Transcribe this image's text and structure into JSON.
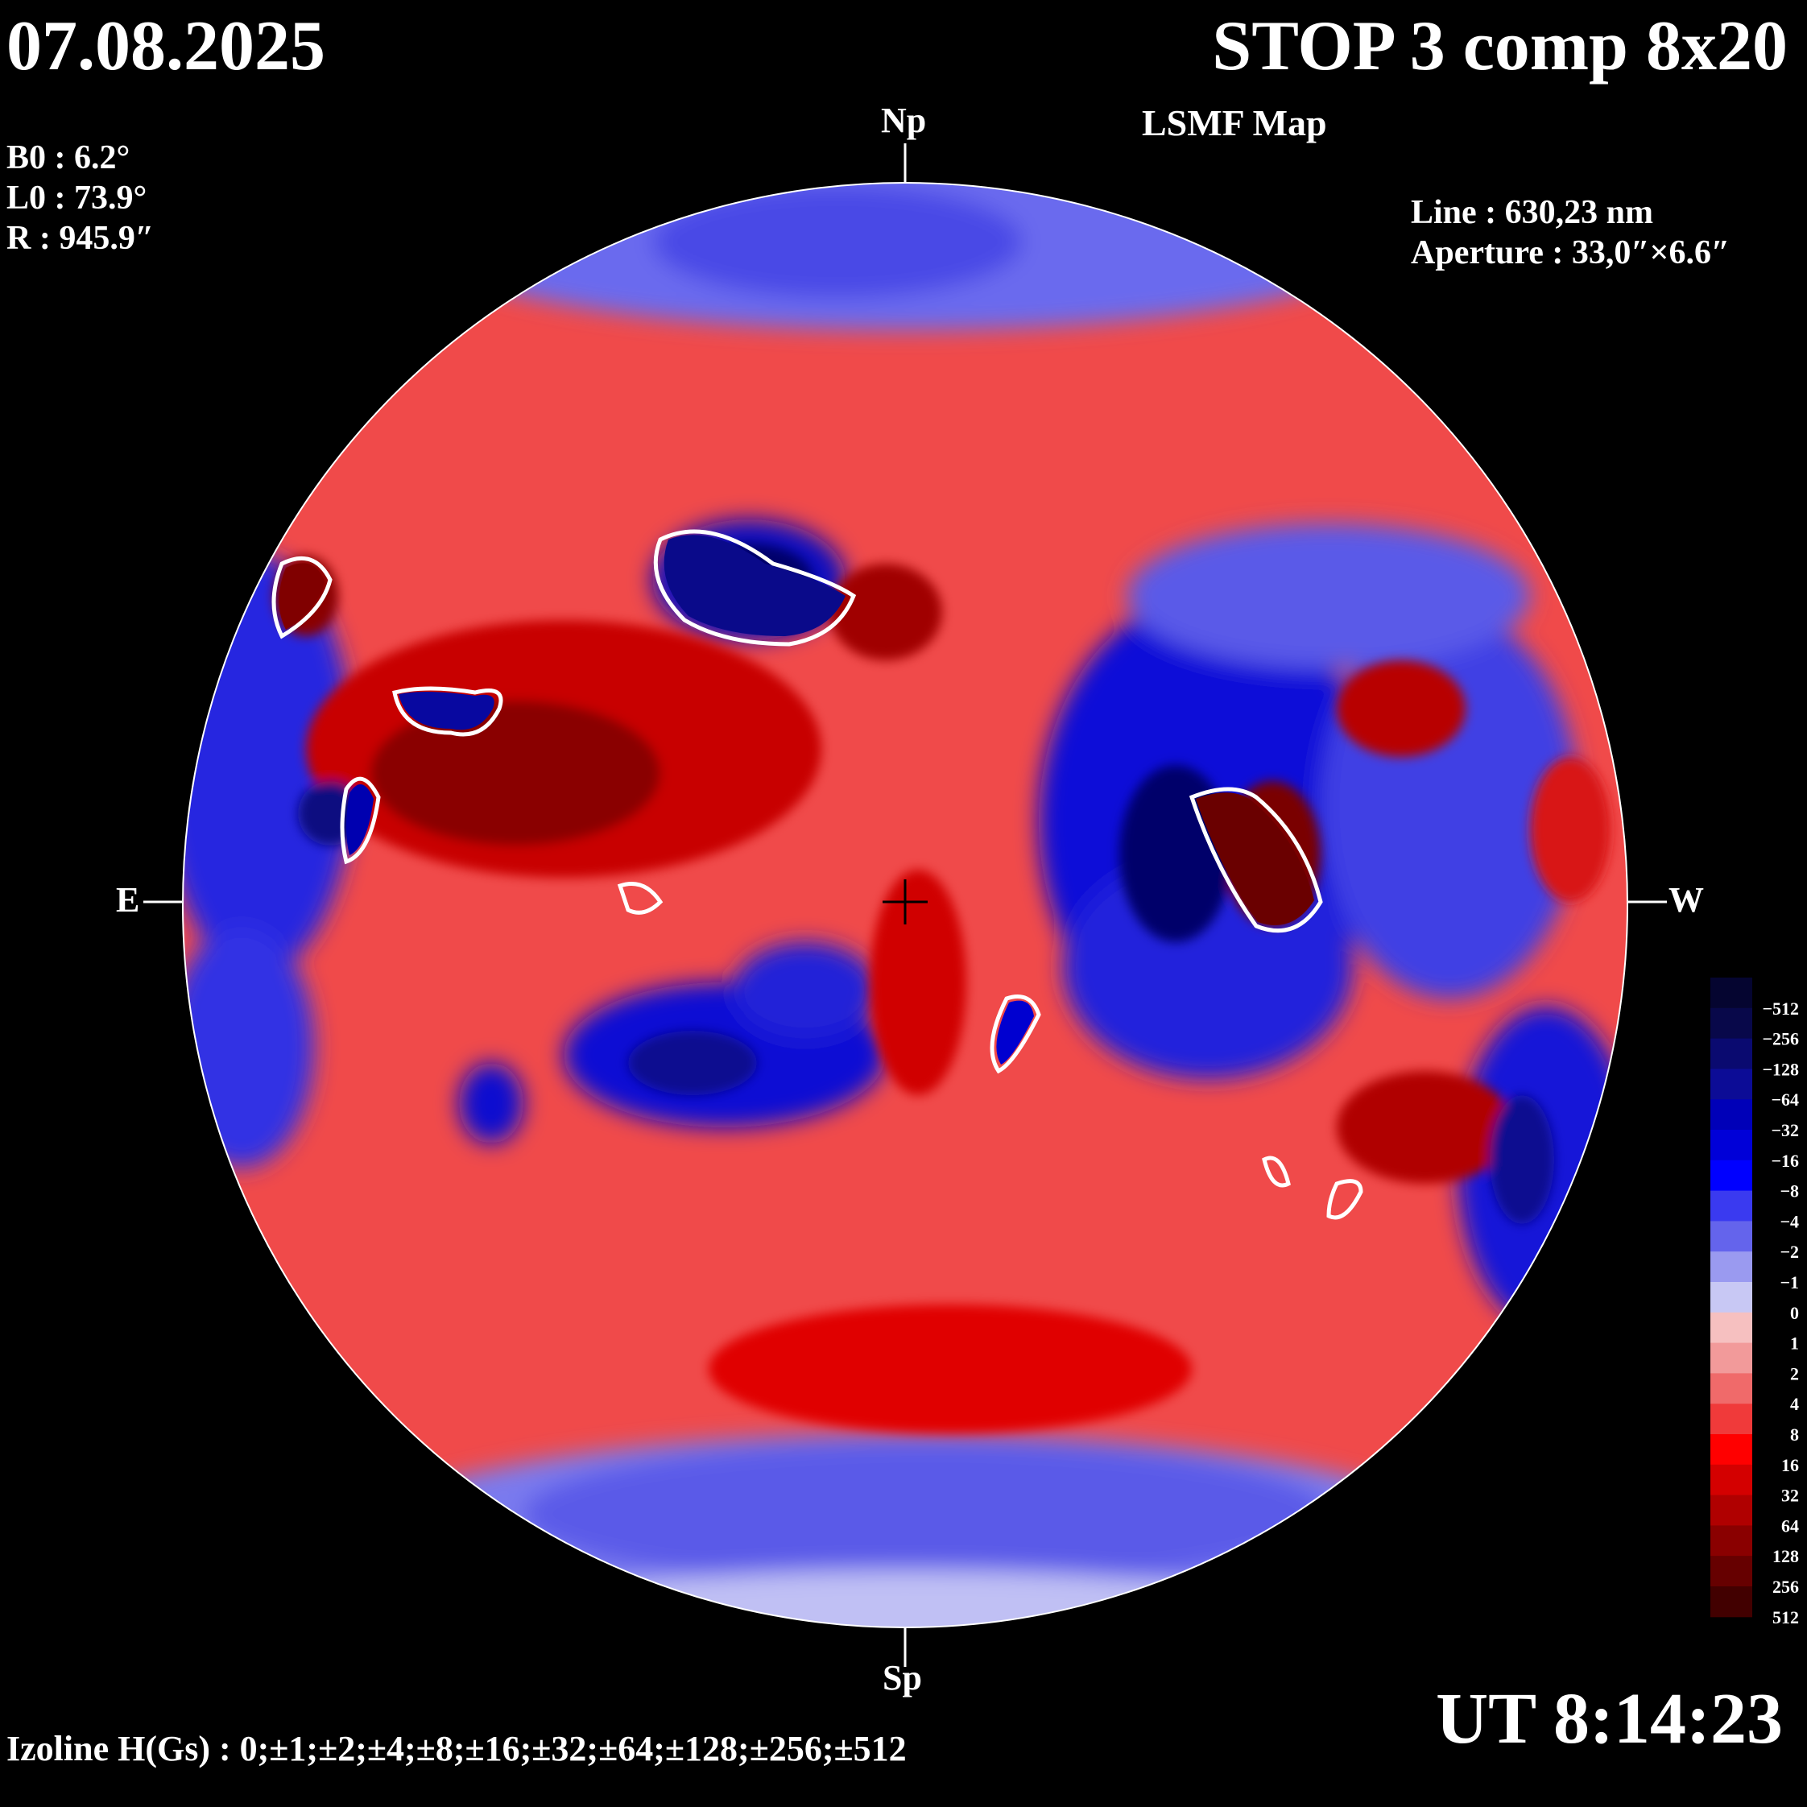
{
  "header": {
    "date": "07.08.2025",
    "title": "STOP 3 comp 8x20",
    "subtitle": "LSMF Map"
  },
  "params": {
    "b0": "B0 : 6.2°",
    "l0": "L0 : 73.9°",
    "r": "R  : 945.9″"
  },
  "instrument": {
    "line": "Line : 630,23 nm",
    "aperture": "Aperture : 33,0″×6.6″"
  },
  "poles": {
    "north": "Np",
    "south": "Sp",
    "east": "E",
    "west": "W"
  },
  "time": "UT 8:14:23",
  "izoline": "Izoline H(Gs) : 0;±1;±2;±4;±8;±16;±32;±64;±128;±256;±512",
  "colorbar": {
    "labels": [
      "−512",
      "−256",
      "−128",
      "−64",
      "−32",
      "−16",
      "−8",
      "−4",
      "−2",
      "−1",
      "0",
      "1",
      "2",
      "4",
      "8",
      "16",
      "32",
      "64",
      "128",
      "256",
      "512"
    ],
    "colors": [
      "#050530",
      "#08084a",
      "#0a0a70",
      "#0c0c96",
      "#0000b8",
      "#0000d8",
      "#0000ff",
      "#3a3af0",
      "#6464ec",
      "#9a9af0",
      "#c8c8f4",
      "#f6c0c0",
      "#f29a9a",
      "#f06a6a",
      "#f03a3a",
      "#ff0000",
      "#d40000",
      "#b00000",
      "#8a0000",
      "#660000",
      "#420000"
    ]
  },
  "map_palette": {
    "strong_negative": "#0a0a80",
    "negative": "#0000e0",
    "weak_negative": "#6a6aee",
    "faint_negative": "#c0c0f4",
    "faint_positive": "#f6c0c0",
    "weak_positive": "#f07070",
    "positive": "#ff0000",
    "strong_positive": "#a00000",
    "neutral_line": "#ffffff"
  }
}
